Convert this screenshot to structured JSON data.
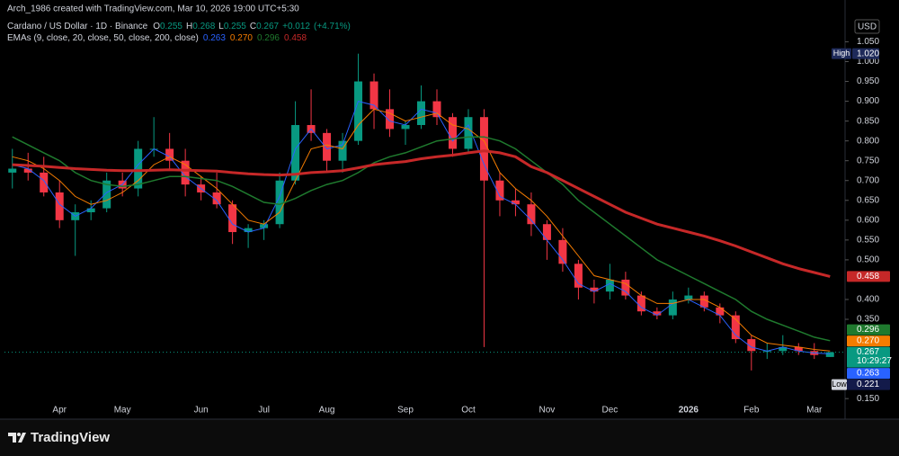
{
  "header": {
    "attribution": "Arch_1986 created with TradingView.com, Mar 10, 2026 19:00 UTC+5:30"
  },
  "chart_data": {
    "type": "candlestick",
    "symbol": "Cardano / US Dollar · 1D · Binance",
    "ohlc_legend": [
      {
        "key": "O",
        "value": 0.255
      },
      {
        "key": "H",
        "value": 0.268
      },
      {
        "key": "L",
        "value": 0.255
      },
      {
        "key": "C",
        "value": 0.267
      }
    ],
    "change": {
      "value": 0.012,
      "label": "+0.012"
    },
    "change_pct": {
      "value": 4.71,
      "label": "(+4.71%)"
    },
    "indicator_label": "EMAs (9, close, 20, close, 50, close, 200, close)",
    "currency": "USD",
    "categories": [
      null,
      null,
      null,
      "Apr",
      null,
      null,
      null,
      "May",
      null,
      null,
      null,
      null,
      "Jun",
      null,
      null,
      null,
      "Jul",
      null,
      null,
      null,
      "Aug",
      null,
      null,
      null,
      null,
      "Sep",
      null,
      null,
      null,
      "Oct",
      null,
      null,
      null,
      null,
      "Nov",
      null,
      null,
      null,
      "Dec",
      null,
      null,
      null,
      null,
      "2026",
      null,
      null,
      null,
      "Feb",
      null,
      null,
      null,
      "Mar",
      null
    ],
    "open": [
      0.72,
      0.73,
      0.72,
      0.67,
      0.6,
      0.62,
      0.63,
      0.7,
      0.68,
      0.78,
      0.78,
      0.75,
      0.69,
      0.67,
      0.64,
      0.57,
      0.58,
      0.59,
      0.7,
      0.84,
      0.82,
      0.75,
      0.8,
      0.95,
      0.88,
      0.83,
      0.84,
      0.9,
      0.86,
      0.78,
      0.86,
      0.7,
      0.65,
      0.64,
      0.59,
      0.55,
      0.49,
      0.43,
      0.42,
      0.45,
      0.41,
      0.37,
      0.36,
      0.4,
      0.41,
      0.38,
      0.36,
      0.3,
      0.27,
      0.27,
      0.28,
      0.27,
      0.255
    ],
    "high": [
      0.78,
      0.77,
      0.76,
      0.7,
      0.64,
      0.65,
      0.72,
      0.72,
      0.8,
      0.86,
      0.82,
      0.78,
      0.71,
      0.72,
      0.65,
      0.59,
      0.6,
      0.72,
      0.9,
      0.93,
      0.83,
      0.82,
      1.02,
      0.97,
      0.93,
      0.85,
      0.94,
      0.93,
      0.87,
      0.88,
      0.88,
      0.72,
      0.68,
      0.67,
      0.6,
      0.58,
      0.5,
      0.45,
      0.49,
      0.47,
      0.42,
      0.38,
      0.42,
      0.43,
      0.42,
      0.39,
      0.37,
      0.31,
      0.29,
      0.31,
      0.29,
      0.29,
      0.268
    ],
    "low": [
      0.68,
      0.7,
      0.66,
      0.58,
      0.51,
      0.6,
      0.62,
      0.66,
      0.66,
      0.76,
      0.73,
      0.66,
      0.65,
      0.63,
      0.54,
      0.53,
      0.55,
      0.58,
      0.69,
      0.8,
      0.72,
      0.72,
      0.79,
      0.83,
      0.81,
      0.79,
      0.83,
      0.84,
      0.76,
      0.77,
      0.28,
      0.61,
      0.61,
      0.56,
      0.5,
      0.47,
      0.4,
      0.39,
      0.4,
      0.4,
      0.36,
      0.35,
      0.35,
      0.39,
      0.37,
      0.34,
      0.29,
      0.221,
      0.25,
      0.26,
      0.26,
      0.25,
      0.255
    ],
    "close": [
      0.73,
      0.72,
      0.67,
      0.6,
      0.62,
      0.63,
      0.7,
      0.68,
      0.78,
      0.78,
      0.75,
      0.69,
      0.67,
      0.64,
      0.57,
      0.58,
      0.59,
      0.7,
      0.84,
      0.82,
      0.75,
      0.8,
      0.95,
      0.88,
      0.83,
      0.84,
      0.9,
      0.86,
      0.78,
      0.86,
      0.7,
      0.65,
      0.64,
      0.59,
      0.55,
      0.49,
      0.43,
      0.42,
      0.45,
      0.41,
      0.37,
      0.36,
      0.4,
      0.41,
      0.38,
      0.36,
      0.3,
      0.27,
      0.27,
      0.28,
      0.27,
      0.26,
      0.267
    ],
    "up_color": "#089981",
    "down_color": "#f23645",
    "series": [
      {
        "color": "#2962ff",
        "last_value": 0.263,
        "values": [
          0.74,
          0.73,
          0.7,
          0.64,
          0.61,
          0.63,
          0.67,
          0.69,
          0.74,
          0.78,
          0.76,
          0.71,
          0.68,
          0.65,
          0.59,
          0.57,
          0.58,
          0.66,
          0.78,
          0.83,
          0.78,
          0.79,
          0.9,
          0.89,
          0.85,
          0.84,
          0.88,
          0.87,
          0.8,
          0.84,
          0.74,
          0.66,
          0.64,
          0.6,
          0.55,
          0.5,
          0.44,
          0.42,
          0.44,
          0.42,
          0.38,
          0.36,
          0.39,
          0.4,
          0.38,
          0.36,
          0.31,
          0.28,
          0.27,
          0.28,
          0.27,
          0.265,
          0.263
        ]
      },
      {
        "color": "#f57c00",
        "last_value": {
          "value": 0.27,
          "label": "0.270"
        },
        "values": [
          0.76,
          0.75,
          0.73,
          0.7,
          0.66,
          0.64,
          0.65,
          0.67,
          0.7,
          0.74,
          0.76,
          0.74,
          0.71,
          0.68,
          0.64,
          0.6,
          0.59,
          0.62,
          0.7,
          0.78,
          0.79,
          0.78,
          0.84,
          0.88,
          0.87,
          0.85,
          0.86,
          0.87,
          0.84,
          0.83,
          0.8,
          0.72,
          0.68,
          0.65,
          0.61,
          0.56,
          0.51,
          0.46,
          0.45,
          0.44,
          0.41,
          0.39,
          0.39,
          0.4,
          0.4,
          0.38,
          0.35,
          0.31,
          0.29,
          0.285,
          0.28,
          0.274,
          0.27
        ]
      },
      {
        "color": "#1f7a2e",
        "last_value": 0.296,
        "values": [
          0.81,
          0.79,
          0.77,
          0.75,
          0.72,
          0.7,
          0.69,
          0.685,
          0.69,
          0.7,
          0.71,
          0.71,
          0.705,
          0.7,
          0.685,
          0.665,
          0.645,
          0.64,
          0.655,
          0.675,
          0.69,
          0.7,
          0.72,
          0.745,
          0.76,
          0.77,
          0.785,
          0.8,
          0.805,
          0.81,
          0.81,
          0.8,
          0.78,
          0.75,
          0.72,
          0.69,
          0.65,
          0.62,
          0.59,
          0.56,
          0.53,
          0.5,
          0.48,
          0.46,
          0.44,
          0.42,
          0.4,
          0.37,
          0.35,
          0.335,
          0.32,
          0.305,
          0.296
        ]
      },
      {
        "color": "#c62828",
        "last_value": 0.458,
        "values": [
          0.74,
          0.738,
          0.736,
          0.733,
          0.73,
          0.728,
          0.726,
          0.725,
          0.725,
          0.726,
          0.727,
          0.726,
          0.725,
          0.724,
          0.72,
          0.717,
          0.715,
          0.714,
          0.716,
          0.72,
          0.722,
          0.725,
          0.732,
          0.74,
          0.744,
          0.748,
          0.755,
          0.76,
          0.764,
          0.77,
          0.775,
          0.77,
          0.76,
          0.735,
          0.72,
          0.7,
          0.68,
          0.66,
          0.64,
          0.62,
          0.605,
          0.59,
          0.58,
          0.57,
          0.56,
          0.548,
          0.535,
          0.52,
          0.505,
          0.49,
          0.478,
          0.468,
          0.458
        ]
      }
    ],
    "ylim": [
      0.13,
      1.11
    ],
    "yticks": [
      {
        "value": 1.05,
        "label": "1.050"
      },
      {
        "value": 1.0,
        "label": "1.000"
      },
      {
        "value": 0.95,
        "label": "0.950"
      },
      {
        "value": 0.9,
        "label": "0.900"
      },
      {
        "value": 0.85,
        "label": "0.850"
      },
      {
        "value": 0.8,
        "label": "0.800"
      },
      {
        "value": 0.75,
        "label": "0.750"
      },
      {
        "value": 0.7,
        "label": "0.700"
      },
      {
        "value": 0.65,
        "label": "0.650"
      },
      {
        "value": 0.6,
        "label": "0.600"
      },
      {
        "value": 0.55,
        "label": "0.550"
      },
      {
        "value": 0.5,
        "label": "0.500"
      },
      {
        "value": 0.4,
        "label": "0.400"
      },
      {
        "value": 0.35,
        "label": "0.350"
      },
      {
        "value": 0.15,
        "label": "0.150"
      }
    ],
    "high_marker": {
      "label": "High",
      "value": {
        "value": 1.02,
        "label": "1.020"
      }
    },
    "low_marker": {
      "label": "Low",
      "value": 0.221
    },
    "countdown": "10:29:27"
  },
  "footer": {
    "brand": "TradingView"
  }
}
